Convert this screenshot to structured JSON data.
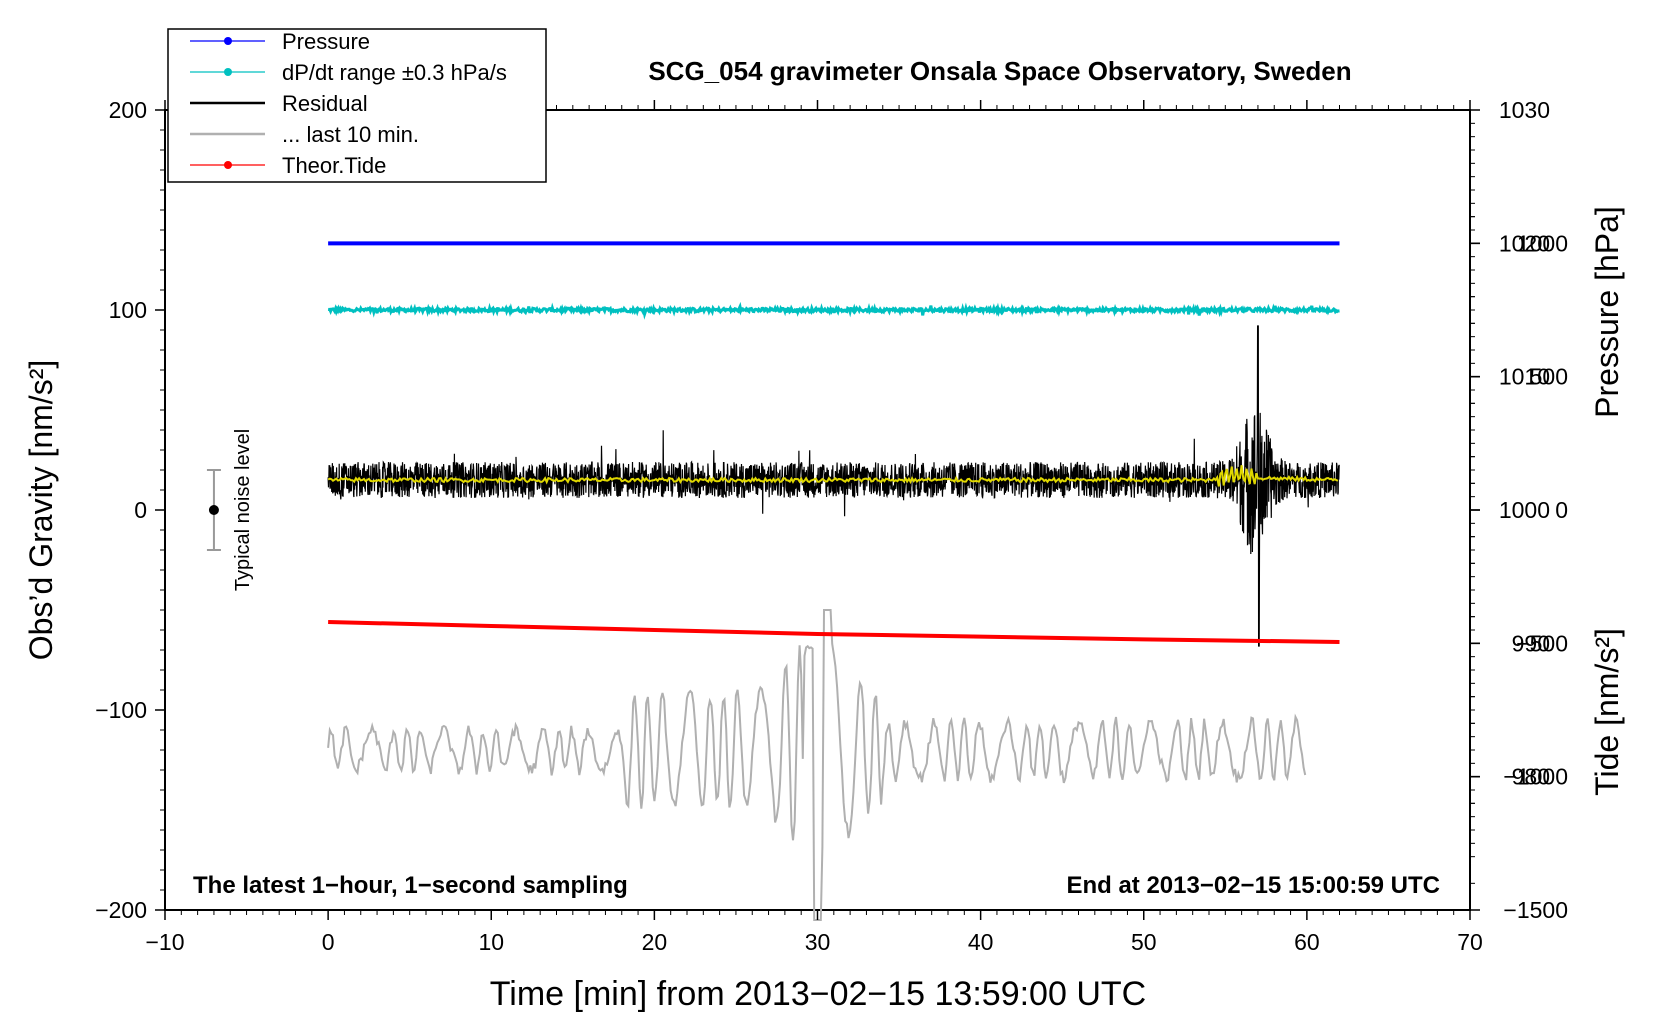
{
  "chart_data": {
    "type": "line",
    "title": "SCG_054 gravimeter Onsala Space Observatory, Sweden",
    "xlabel": "Time [min] from 2013−02−15 13:59:00 UTC",
    "ylabel_left": "Obs’d Gravity [nm/s²]",
    "ylabel_right_pressure": "Pressure [hPa]",
    "ylabel_right_tide": "Tide [nm/s²]",
    "annotation_left": "The latest 1−hour, 1−second sampling",
    "annotation_right": "End at 2013−02−15 15:00:59 UTC",
    "noise_bar_label": "Typical noise level",
    "noise_bar": {
      "x": -7,
      "y": 0,
      "low": -20,
      "high": 20
    },
    "xlim": [
      -10,
      70
    ],
    "ylim": [
      -200,
      200
    ],
    "pressure_range": [
      970,
      1030
    ],
    "tide_range": [
      -1500,
      1500
    ],
    "x_ticks": [
      -10,
      0,
      10,
      20,
      30,
      40,
      50,
      60,
      70
    ],
    "x_tick_labels": [
      "−10",
      "0",
      "10",
      "20",
      "30",
      "40",
      "50",
      "60",
      "70"
    ],
    "y_ticks": [
      -200,
      -100,
      0,
      100,
      200
    ],
    "y_tick_labels": [
      "−200",
      "−100",
      "0",
      "100",
      "200"
    ],
    "pressure_ticks": [
      980,
      990,
      1000,
      1010,
      1020,
      1030
    ],
    "pressure_tick_labels": [
      "980",
      "990",
      "1000",
      "1010",
      "1020",
      "1030"
    ],
    "tide_ticks": [
      -1500,
      -1000,
      -500,
      0,
      500,
      1000
    ],
    "tide_tick_labels": [
      "−1500",
      "−1000",
      "−500",
      "0",
      "500",
      "1000"
    ],
    "legend_position": "top-left",
    "legend": [
      {
        "label": "Pressure",
        "color": "#0000ff",
        "style": "line-dot"
      },
      {
        "label": "dP/dt range ±0.3 hPa/s",
        "color": "#00c0c0",
        "style": "line-dot"
      },
      {
        "label": "Residual",
        "color": "#000000",
        "style": "line"
      },
      {
        "label": "... last 10 min.",
        "color": "#b0b0b0",
        "style": "line"
      },
      {
        "label": "Theor.Tide",
        "color": "#ff0000",
        "style": "line-dot"
      }
    ],
    "series": [
      {
        "name": "Pressure",
        "color": "#0000ff",
        "axis": "pressure",
        "x": [
          0,
          62
        ],
        "values": [
          1020.0,
          1020.0
        ]
      },
      {
        "name": "dP/dt range ±0.3 hPa/s",
        "color": "#00c0c0",
        "axis": "left",
        "x": [
          0,
          62
        ],
        "values": [
          100,
          100
        ]
      },
      {
        "name": "Residual",
        "color": "#000000",
        "axis": "left",
        "x": [
          0,
          54,
          55,
          56,
          56.5,
          57,
          57.5,
          58,
          62
        ],
        "values": [
          15,
          15,
          18,
          25,
          40,
          90,
          -70,
          20,
          15
        ]
      },
      {
        "name": "Residual smoothed",
        "color": "#e0d800",
        "axis": "left",
        "x": [
          0,
          54,
          55,
          56,
          57,
          62
        ],
        "values": [
          15,
          15,
          17,
          18,
          16,
          15
        ]
      },
      {
        "name": "... last 10 min.",
        "color": "#b0b0b0",
        "axis": "left",
        "x": [
          0,
          18,
          20,
          27,
          29,
          30,
          31,
          33,
          60
        ],
        "values": [
          -120,
          -125,
          -110,
          -95,
          -60,
          -210,
          -45,
          -100,
          -120
        ]
      },
      {
        "name": "Theor.Tide",
        "color": "#ff0000",
        "axis": "tide",
        "x": [
          0,
          10,
          20,
          30,
          40,
          50,
          62
        ],
        "values": [
          -420,
          -435,
          -450,
          -465,
          -475,
          -485,
          -495
        ]
      }
    ]
  }
}
